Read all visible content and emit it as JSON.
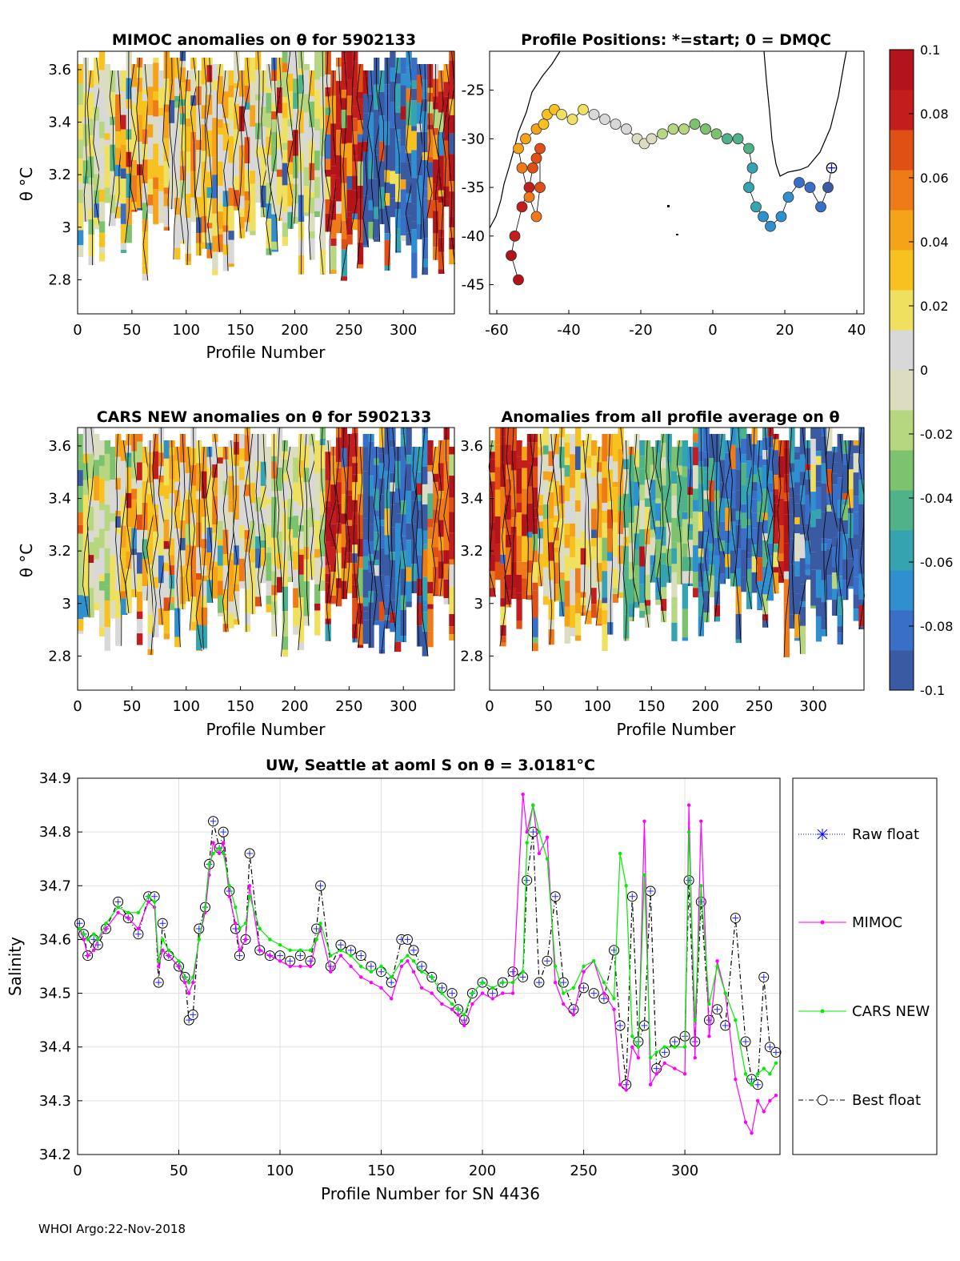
{
  "footer": "WHOI Argo:22-Nov-2018",
  "colorbar": {
    "ticks": [
      "0.1",
      "0.08",
      "0.06",
      "0.04",
      "0.02",
      "0",
      "-0.02",
      "-0.04",
      "-0.06",
      "-0.08",
      "-0.1"
    ],
    "range": [
      -0.1,
      0.1
    ],
    "colors": [
      "#3a5ba3",
      "#3a6fc8",
      "#2f8fcf",
      "#35a4b0",
      "#4fb288",
      "#7cc26f",
      "#b6d77f",
      "#dcdcc0",
      "#d8d8d8",
      "#f0e060",
      "#f7c21f",
      "#f5a318",
      "#ef7a18",
      "#e04f14",
      "#c41d1d",
      "#b3141b"
    ]
  },
  "chart_data": [
    {
      "type": "heatmap",
      "title": "MIMOC anomalies on θ  for 5902133",
      "xlabel": "Profile Number",
      "ylabel": "θ °C",
      "xlim": [
        0,
        347
      ],
      "ylim": [
        2.67,
        3.67
      ],
      "xticks": [
        "0",
        "50",
        "100",
        "150",
        "200",
        "250",
        "300"
      ],
      "yticks": [
        "3.6",
        "3.4",
        "3.2",
        "3",
        "2.8"
      ]
    },
    {
      "type": "scatter",
      "title": "Profile Positions: *=start; 0 = DMQC",
      "xlim": [
        -62,
        42
      ],
      "ylim": [
        -48,
        -21
      ],
      "xticks": [
        "-60",
        "-40",
        "-20",
        "0",
        "20",
        "40"
      ],
      "yticks": [
        "-25",
        "-30",
        "-35",
        "-40",
        "-45"
      ],
      "track_lon": [
        -54,
        -56,
        -55,
        -53,
        -51,
        -50,
        -49,
        -48,
        -48,
        -49,
        -51,
        -53,
        -54,
        -52,
        -49,
        -47,
        -46,
        -44,
        -42,
        -39,
        -36,
        -33,
        -30,
        -27,
        -24,
        -21,
        -19,
        -17,
        -14,
        -11,
        -8,
        -5,
        -2,
        1,
        4,
        7,
        10,
        11,
        10,
        12,
        14,
        16,
        19,
        21,
        24,
        27,
        30,
        32,
        33
      ],
      "track_lat": [
        -44.5,
        -42,
        -40,
        -37,
        -35,
        -33,
        -32,
        -31,
        -35,
        -38,
        -36,
        -33,
        -31,
        -30,
        -29,
        -28.5,
        -27.5,
        -27,
        -27.5,
        -28,
        -27,
        -27.5,
        -28,
        -28.5,
        -29,
        -30,
        -30.5,
        -30,
        -29.5,
        -29,
        -29,
        -28.5,
        -29,
        -29.5,
        -30,
        -30,
        -31,
        -33,
        -35,
        -37,
        -38,
        -39,
        -38,
        -36,
        -34.5,
        -35,
        -37,
        -35,
        -33
      ]
    },
    {
      "type": "heatmap",
      "title": "CARS NEW anomalies on θ for 5902133",
      "xlabel": "Profile Number",
      "ylabel": "θ °C",
      "xlim": [
        0,
        347
      ],
      "ylim": [
        2.67,
        3.67
      ],
      "xticks": [
        "0",
        "50",
        "100",
        "150",
        "200",
        "250",
        "300"
      ],
      "yticks": [
        "3.6",
        "3.4",
        "3.2",
        "3",
        "2.8"
      ]
    },
    {
      "type": "heatmap",
      "title": "Anomalies from all profile average on θ",
      "xlabel": "Profile Number",
      "xlim": [
        0,
        347
      ],
      "ylim": [
        2.67,
        3.67
      ],
      "xticks": [
        "0",
        "50",
        "100",
        "150",
        "200",
        "250",
        "300"
      ],
      "yticks": [
        "3.6",
        "3.4",
        "3.2",
        "3",
        "2.8"
      ]
    },
    {
      "type": "line",
      "title": "UW, Seattle at aoml S on θ = 3.0181°C",
      "xlabel": "Profile Number for SN 4436",
      "ylabel": "Salinity",
      "xlim": [
        0,
        347
      ],
      "ylim": [
        34.2,
        34.9
      ],
      "xticks": [
        "0",
        "50",
        "100",
        "150",
        "200",
        "250",
        "300"
      ],
      "yticks": [
        "34.9",
        "34.8",
        "34.7",
        "34.6",
        "34.5",
        "34.4",
        "34.3",
        "34.2"
      ],
      "legend": [
        "Raw float",
        "MIMOC",
        "CARS NEW",
        "Best float"
      ],
      "x": [
        1,
        3,
        5,
        8,
        10,
        14,
        20,
        25,
        30,
        35,
        38,
        40,
        42,
        45,
        50,
        53,
        55,
        57,
        60,
        63,
        65,
        67,
        70,
        72,
        75,
        78,
        80,
        83,
        85,
        90,
        95,
        100,
        105,
        110,
        115,
        118,
        120,
        125,
        130,
        135,
        140,
        145,
        150,
        155,
        160,
        163,
        166,
        170,
        175,
        180,
        185,
        188,
        191,
        195,
        200,
        205,
        210,
        215,
        220,
        222,
        225,
        228,
        232,
        236,
        240,
        245,
        250,
        255,
        260,
        265,
        268,
        271,
        274,
        277,
        280,
        283,
        286,
        290,
        295,
        300,
        302,
        305,
        308,
        312,
        316,
        320,
        325,
        330,
        333,
        336,
        339,
        342,
        345
      ],
      "series": [
        {
          "name": "Best float",
          "values": [
            34.63,
            34.61,
            34.57,
            34.6,
            34.59,
            34.62,
            34.67,
            34.64,
            34.61,
            34.68,
            34.68,
            34.52,
            34.63,
            34.57,
            34.55,
            34.53,
            34.45,
            34.46,
            34.62,
            34.66,
            34.74,
            34.82,
            34.77,
            34.8,
            34.69,
            34.62,
            34.57,
            34.6,
            34.76,
            34.58,
            34.57,
            34.57,
            34.56,
            34.57,
            34.56,
            34.62,
            34.7,
            34.55,
            34.59,
            34.58,
            34.57,
            34.55,
            34.54,
            34.52,
            34.6,
            34.6,
            34.58,
            34.55,
            34.53,
            34.51,
            34.5,
            34.47,
            34.45,
            34.5,
            34.52,
            34.5,
            34.52,
            34.54,
            34.53,
            34.71,
            34.8,
            34.52,
            34.56,
            34.68,
            34.52,
            34.47,
            34.51,
            34.5,
            34.49,
            34.58,
            34.44,
            34.33,
            34.68,
            34.41,
            34.44,
            34.69,
            34.36,
            34.39,
            34.41,
            34.42,
            34.71,
            34.41,
            34.67,
            34.45,
            34.47,
            34.44,
            34.64,
            34.41,
            34.34,
            34.33,
            34.53,
            34.4,
            34.39
          ]
        },
        {
          "name": "MIMOC",
          "values": [
            34.62,
            34.6,
            34.57,
            34.58,
            34.6,
            34.62,
            34.65,
            34.64,
            34.62,
            34.67,
            34.66,
            34.55,
            34.58,
            34.57,
            34.55,
            34.52,
            34.5,
            34.52,
            34.6,
            34.65,
            34.72,
            34.78,
            34.76,
            34.78,
            34.68,
            34.63,
            34.58,
            34.6,
            34.7,
            34.58,
            34.57,
            34.56,
            34.55,
            34.55,
            34.55,
            34.6,
            34.62,
            34.54,
            34.57,
            34.55,
            34.53,
            34.52,
            34.51,
            34.49,
            34.55,
            34.56,
            34.54,
            34.51,
            34.5,
            34.48,
            34.47,
            34.46,
            34.44,
            34.48,
            34.5,
            34.49,
            34.5,
            34.5,
            34.87,
            34.8,
            34.85,
            34.76,
            34.79,
            34.52,
            34.48,
            34.46,
            34.54,
            34.56,
            34.5,
            34.47,
            34.33,
            34.32,
            34.4,
            34.38,
            34.82,
            34.33,
            34.35,
            34.37,
            34.36,
            34.35,
            34.85,
            34.38,
            34.82,
            34.42,
            34.56,
            34.5,
            34.34,
            34.26,
            34.24,
            34.3,
            34.28,
            34.3,
            34.31
          ]
        },
        {
          "name": "CARS NEW",
          "values": [
            34.62,
            34.61,
            34.6,
            34.61,
            34.6,
            34.63,
            34.66,
            34.65,
            34.65,
            34.68,
            34.67,
            34.56,
            34.6,
            34.58,
            34.56,
            34.53,
            34.52,
            34.53,
            34.6,
            34.66,
            34.74,
            34.76,
            34.77,
            34.76,
            34.7,
            34.66,
            34.62,
            34.63,
            34.68,
            34.62,
            34.6,
            34.59,
            34.58,
            34.58,
            34.58,
            34.6,
            34.63,
            34.57,
            34.58,
            34.57,
            34.55,
            34.54,
            34.55,
            34.53,
            34.56,
            34.57,
            34.56,
            34.54,
            34.53,
            34.5,
            34.48,
            34.47,
            34.46,
            34.5,
            34.52,
            34.51,
            34.52,
            34.52,
            34.54,
            34.78,
            34.85,
            34.8,
            34.75,
            34.55,
            34.5,
            34.51,
            34.55,
            34.56,
            34.52,
            34.49,
            34.76,
            34.7,
            34.42,
            34.4,
            34.72,
            34.38,
            34.39,
            34.4,
            34.4,
            34.4,
            34.8,
            34.45,
            34.7,
            34.48,
            34.55,
            34.5,
            34.45,
            34.35,
            34.33,
            34.35,
            34.36,
            34.35,
            34.37
          ]
        }
      ]
    }
  ]
}
